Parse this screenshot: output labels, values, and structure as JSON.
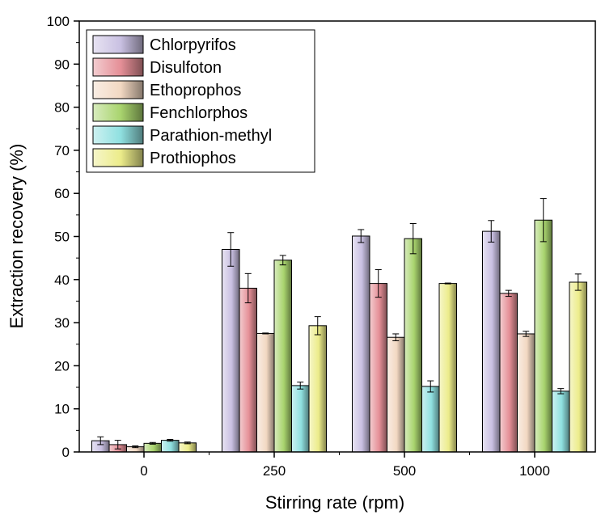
{
  "chart_data": {
    "type": "bar",
    "title": "",
    "xlabel": "Stirring rate (rpm)",
    "ylabel": "Extraction recovery (%)",
    "ylim": [
      0,
      100
    ],
    "yticks": [
      "0",
      "10",
      "20",
      "30",
      "40",
      "50",
      "60",
      "70",
      "80",
      "90",
      "100"
    ],
    "categories": [
      "0",
      "250",
      "500",
      "1000"
    ],
    "legend_position": "top-left",
    "grid": false,
    "series": [
      {
        "name": "Chlorpyrifos",
        "color": "#c9c0e2",
        "values": [
          2.6,
          47.0,
          50.1,
          51.2
        ],
        "errors": [
          0.9,
          3.9,
          1.5,
          2.5
        ]
      },
      {
        "name": "Disulfoton",
        "color": "#e58f97",
        "values": [
          1.7,
          38.0,
          39.1,
          36.8
        ],
        "errors": [
          1.0,
          3.4,
          3.2,
          0.7
        ]
      },
      {
        "name": "Ethoprophos",
        "color": "#f2d8c2",
        "values": [
          1.2,
          27.5,
          26.6,
          27.4
        ],
        "errors": [
          0.2,
          0.1,
          0.8,
          0.6
        ]
      },
      {
        "name": "Fenchlorphos",
        "color": "#a9d46e",
        "values": [
          2.0,
          44.5,
          49.5,
          53.8
        ],
        "errors": [
          0.2,
          1.1,
          3.5,
          5.0
        ]
      },
      {
        "name": "Parathion-methyl",
        "color": "#8fe0e0",
        "values": [
          2.7,
          15.4,
          15.2,
          14.1
        ],
        "errors": [
          0.2,
          0.8,
          1.3,
          0.6
        ]
      },
      {
        "name": "Prothiophos",
        "color": "#ecec8a",
        "values": [
          2.1,
          29.3,
          39.1,
          39.4
        ],
        "errors": [
          0.2,
          2.1,
          0.1,
          1.9
        ]
      }
    ]
  }
}
